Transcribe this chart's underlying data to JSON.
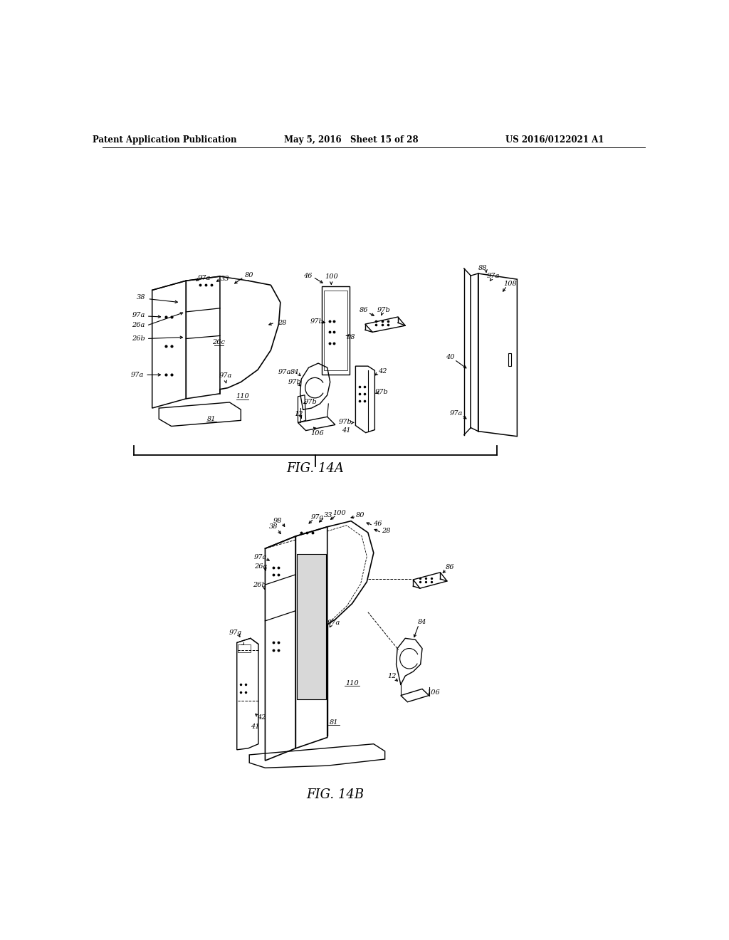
{
  "header_left": "Patent Application Publication",
  "header_center": "May 5, 2016   Sheet 15 of 28",
  "header_right": "US 2016/0122021 A1",
  "fig14a_label": "FIG. 14A",
  "fig14b_label": "FIG. 14B",
  "background_color": "#ffffff"
}
